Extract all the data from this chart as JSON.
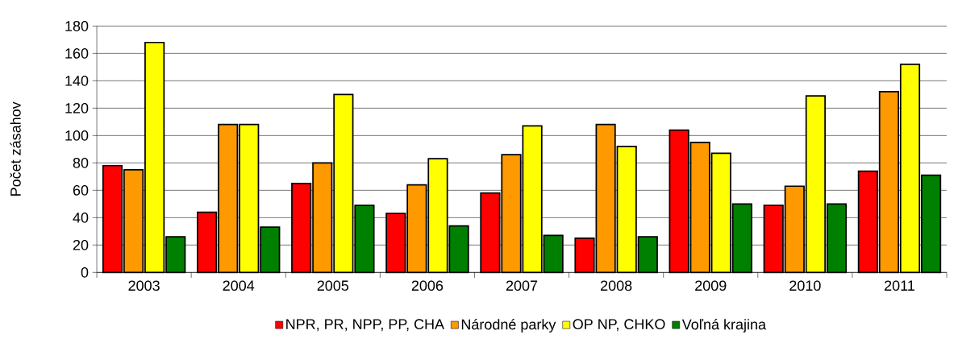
{
  "chart_data": {
    "type": "bar",
    "ylabel": "Počet zásahov",
    "categories": [
      "2003",
      "2004",
      "2005",
      "2006",
      "2007",
      "2008",
      "2009",
      "2010",
      "2011"
    ],
    "series": [
      {
        "name": "NPR, PR, NPP, PP, CHA",
        "color": "#ff0000",
        "values": [
          78,
          44,
          65,
          43,
          58,
          25,
          104,
          49,
          74
        ]
      },
      {
        "name": "Národné parky",
        "color": "#ff9900",
        "values": [
          75,
          108,
          80,
          64,
          86,
          108,
          95,
          63,
          132
        ]
      },
      {
        "name": "OP NP, CHKO",
        "color": "#ffff00",
        "values": [
          168,
          108,
          130,
          83,
          107,
          92,
          87,
          129,
          152
        ]
      },
      {
        "name": "Voľná krajina",
        "color": "#008000",
        "values": [
          26,
          33,
          49,
          34,
          27,
          26,
          50,
          50,
          71
        ]
      }
    ],
    "ylim": [
      0,
      180
    ],
    "yticks": [
      0,
      20,
      40,
      60,
      80,
      100,
      120,
      140,
      160,
      180
    ],
    "grid": "y",
    "legend": "bottom"
  }
}
